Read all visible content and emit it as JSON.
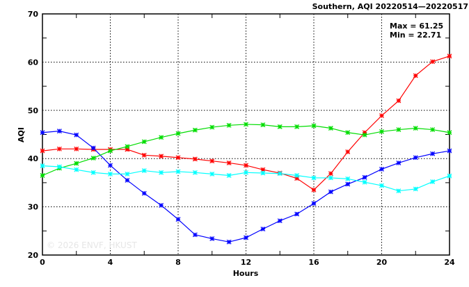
{
  "chart_data": {
    "type": "line",
    "title": "Southern, AQI 20220514—20220517",
    "xlabel": "Hours",
    "ylabel": "AQI",
    "xlim": [
      0,
      24
    ],
    "ylim": [
      20,
      70
    ],
    "xticks": [
      0,
      4,
      8,
      12,
      16,
      20,
      24
    ],
    "yticks": [
      20,
      30,
      40,
      50,
      60,
      70
    ],
    "grid": true,
    "annotations": {
      "max": "Max = 61.25",
      "min": "Min = 22.71"
    },
    "watermark": "© 2026  ENVF, HKUST",
    "x": [
      0,
      1,
      2,
      3,
      4,
      5,
      6,
      7,
      8,
      9,
      10,
      11,
      12,
      13,
      14,
      15,
      16,
      17,
      18,
      19,
      20,
      21,
      22,
      23,
      24
    ],
    "series": [
      {
        "name": "red",
        "color": "#ff0000",
        "values": [
          41.6,
          42.0,
          42.0,
          41.9,
          41.9,
          41.9,
          40.7,
          40.5,
          40.2,
          39.9,
          39.5,
          39.1,
          38.6,
          37.7,
          37.0,
          35.9,
          33.5,
          36.9,
          41.4,
          45.4,
          48.9,
          52.0,
          57.2,
          60.1,
          61.25
        ]
      },
      {
        "name": "blue",
        "color": "#0000ff",
        "values": [
          45.4,
          45.7,
          44.9,
          42.2,
          38.6,
          35.5,
          32.8,
          30.3,
          27.4,
          24.2,
          23.4,
          22.71,
          23.6,
          25.4,
          27.1,
          28.5,
          30.7,
          33.1,
          34.7,
          36.1,
          37.8,
          39.1,
          40.2,
          41.0,
          41.6
        ]
      },
      {
        "name": "green",
        "color": "#00dd00",
        "values": [
          36.5,
          38.0,
          39.0,
          40.1,
          41.6,
          42.5,
          43.5,
          44.4,
          45.2,
          45.9,
          46.5,
          46.9,
          47.1,
          47.0,
          46.6,
          46.6,
          46.8,
          46.3,
          45.4,
          44.9,
          45.6,
          46.0,
          46.3,
          46.0,
          45.4
        ]
      },
      {
        "name": "cyan",
        "color": "#00ffff",
        "values": [
          38.5,
          38.3,
          37.7,
          37.1,
          36.8,
          36.8,
          37.5,
          37.1,
          37.3,
          37.1,
          36.8,
          36.5,
          37.1,
          37.0,
          36.9,
          36.5,
          36.0,
          36.0,
          35.8,
          35.1,
          34.4,
          33.3,
          33.7,
          35.2,
          36.4
        ]
      }
    ]
  }
}
